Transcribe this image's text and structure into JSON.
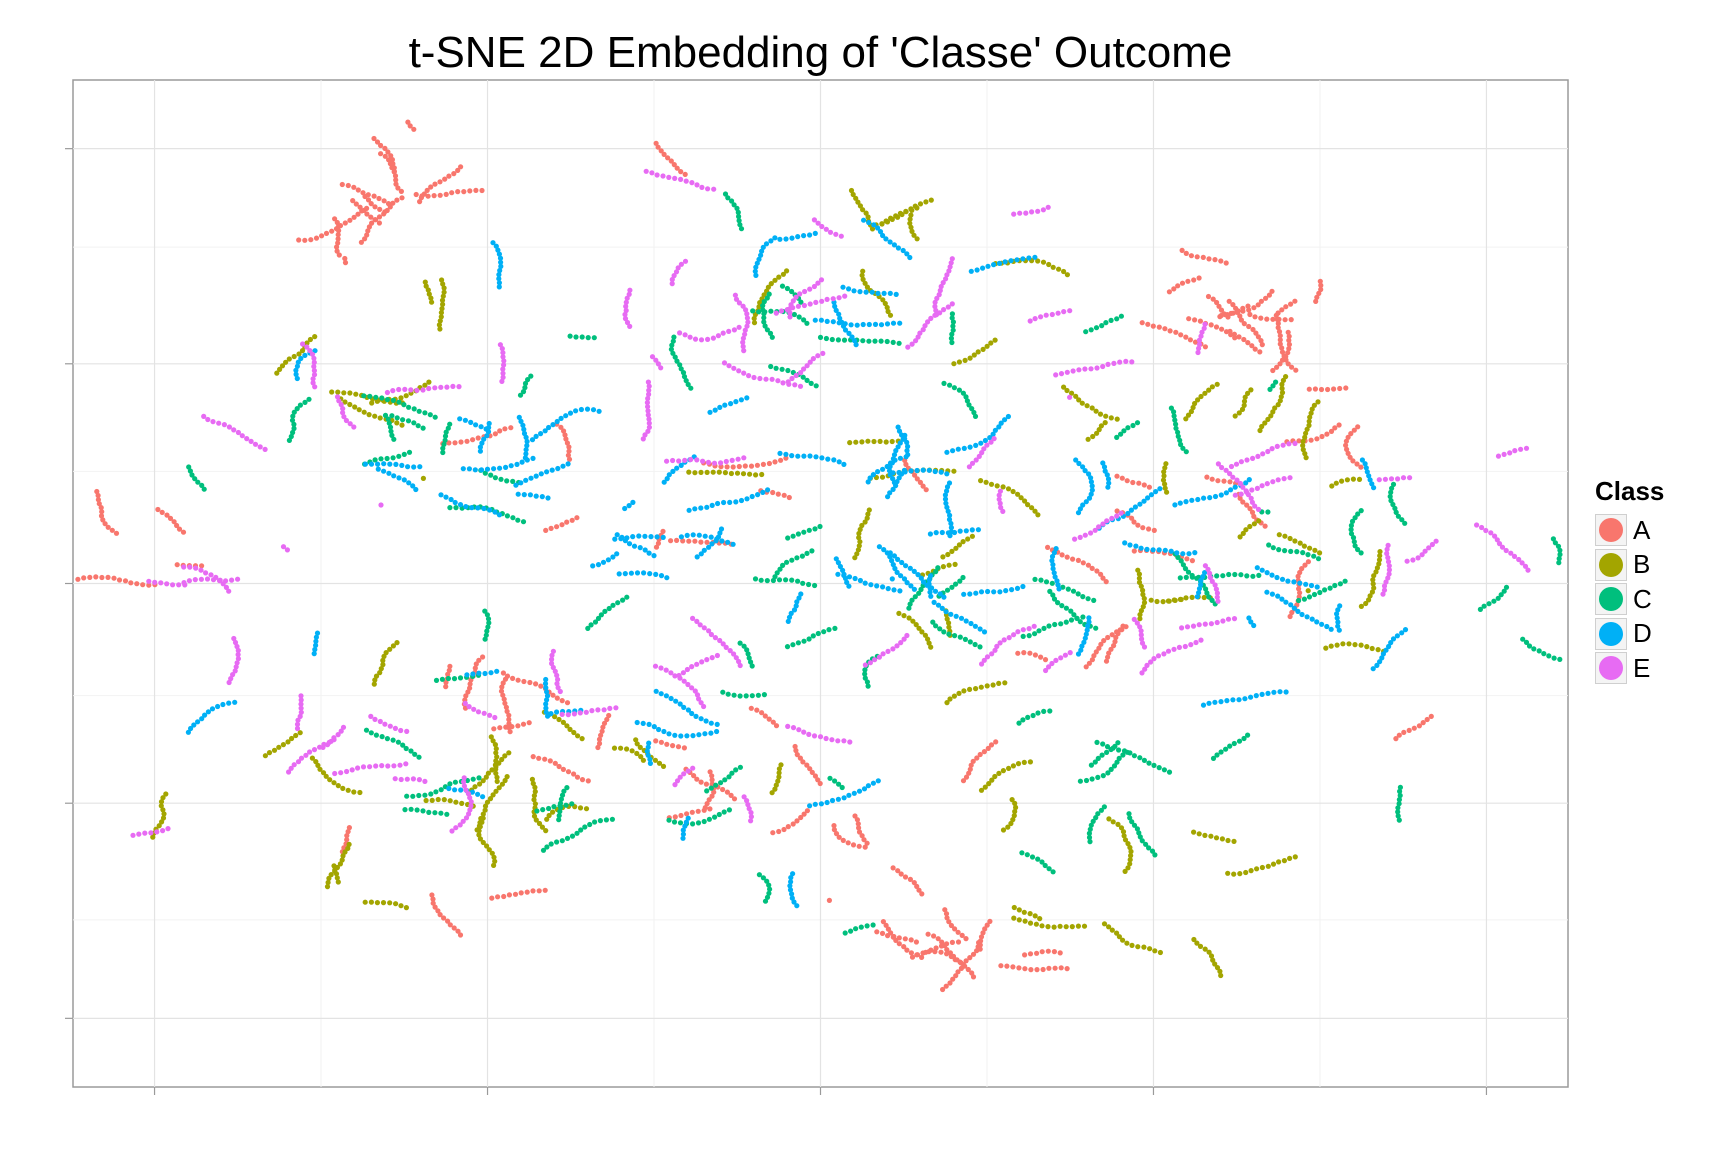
{
  "chart_data": {
    "type": "scatter",
    "title": "t-SNE 2D Embedding of 'Classe' Outcome",
    "xlabel": "",
    "ylabel": "",
    "xlim": [
      -55,
      55
    ],
    "ylim": [
      -55,
      55
    ],
    "grid": true,
    "legend_position": "right",
    "legend_title": "Class",
    "series": [
      {
        "name": "A",
        "color": "#F8766D",
        "clusters": [
          {
            "x": -31,
            "y": 43,
            "spread": 2.2,
            "n": 90
          },
          {
            "x": 31,
            "y": 30,
            "spread": 2.8,
            "n": 130
          },
          {
            "x": 10,
            "y": -38,
            "spread": 2.6,
            "n": 110
          },
          {
            "x": -48,
            "y": 5,
            "spread": 3.0,
            "n": 25
          },
          {
            "x": 40,
            "y": 18,
            "spread": 3.5,
            "n": 30
          },
          {
            "x": -16,
            "y": 12,
            "spread": 8,
            "n": 60
          },
          {
            "x": 0,
            "y": -22,
            "spread": 6,
            "n": 70
          },
          {
            "x": -22,
            "y": -22,
            "spread": 14,
            "n": 150
          },
          {
            "x": 30,
            "y": 0,
            "spread": 12,
            "n": 120
          },
          {
            "x": -30,
            "y": 45,
            "spread": 6,
            "n": 20
          },
          {
            "x": -38,
            "y": 38,
            "spread": 4,
            "n": 20
          }
        ]
      },
      {
        "name": "B",
        "color": "#A3A500",
        "clusters": [
          {
            "x": 0,
            "y": 40,
            "spread": 7,
            "n": 80
          },
          {
            "x": -32,
            "y": 22,
            "spread": 7,
            "n": 70
          },
          {
            "x": -33,
            "y": -19,
            "spread": 8,
            "n": 100
          },
          {
            "x": 20,
            "y": -28,
            "spread": 8,
            "n": 100
          },
          {
            "x": 34,
            "y": 7,
            "spread": 9,
            "n": 110
          },
          {
            "x": 5,
            "y": 4,
            "spread": 8,
            "n": 100
          },
          {
            "x": -17,
            "y": -25,
            "spread": 9,
            "n": 90
          },
          {
            "x": 19,
            "y": 16,
            "spread": 6,
            "n": 60
          }
        ]
      },
      {
        "name": "C",
        "color": "#00BF7D",
        "clusters": [
          {
            "x": -31,
            "y": 12,
            "spread": 8,
            "n": 100
          },
          {
            "x": 2,
            "y": -3,
            "spread": 8,
            "n": 120
          },
          {
            "x": -7,
            "y": 30,
            "spread": 8,
            "n": 90
          },
          {
            "x": -17,
            "y": -22,
            "spread": 10,
            "n": 120
          },
          {
            "x": 37,
            "y": 3,
            "spread": 8,
            "n": 110
          },
          {
            "x": 25,
            "y": -22,
            "spread": 7,
            "n": 90
          },
          {
            "x": 20,
            "y": 24,
            "spread": 5,
            "n": 40
          }
        ]
      },
      {
        "name": "D",
        "color": "#00B0F6",
        "clusters": [
          {
            "x": -25,
            "y": 13,
            "spread": 8,
            "n": 110
          },
          {
            "x": 4,
            "y": 2,
            "spread": 7,
            "n": 110
          },
          {
            "x": -2,
            "y": 32,
            "spread": 8,
            "n": 100
          },
          {
            "x": 7,
            "y": 12,
            "spread": 4,
            "n": 60
          },
          {
            "x": 23,
            "y": 13,
            "spread": 7,
            "n": 90
          },
          {
            "x": -13,
            "y": -20,
            "spread": 10,
            "n": 120
          },
          {
            "x": 28,
            "y": -7,
            "spread": 8,
            "n": 100
          },
          {
            "x": -12,
            "y": 5,
            "spread": 4,
            "n": 60
          }
        ]
      },
      {
        "name": "E",
        "color": "#E76BF3",
        "clusters": [
          {
            "x": -28,
            "y": 20,
            "spread": 9,
            "n": 100
          },
          {
            "x": -38,
            "y": -18,
            "spread": 6,
            "n": 80
          },
          {
            "x": -8,
            "y": 25,
            "spread": 9,
            "n": 100
          },
          {
            "x": 7,
            "y": 40,
            "spread": 5,
            "n": 50
          },
          {
            "x": 23,
            "y": 17,
            "spread": 6,
            "n": 70
          },
          {
            "x": -18,
            "y": -16,
            "spread": 10,
            "n": 100
          },
          {
            "x": 40,
            "y": 7,
            "spread": 7,
            "n": 80
          },
          {
            "x": -44,
            "y": 1,
            "spread": 3,
            "n": 30
          },
          {
            "x": 17,
            "y": -3,
            "spread": 9,
            "n": 70
          }
        ]
      }
    ]
  }
}
